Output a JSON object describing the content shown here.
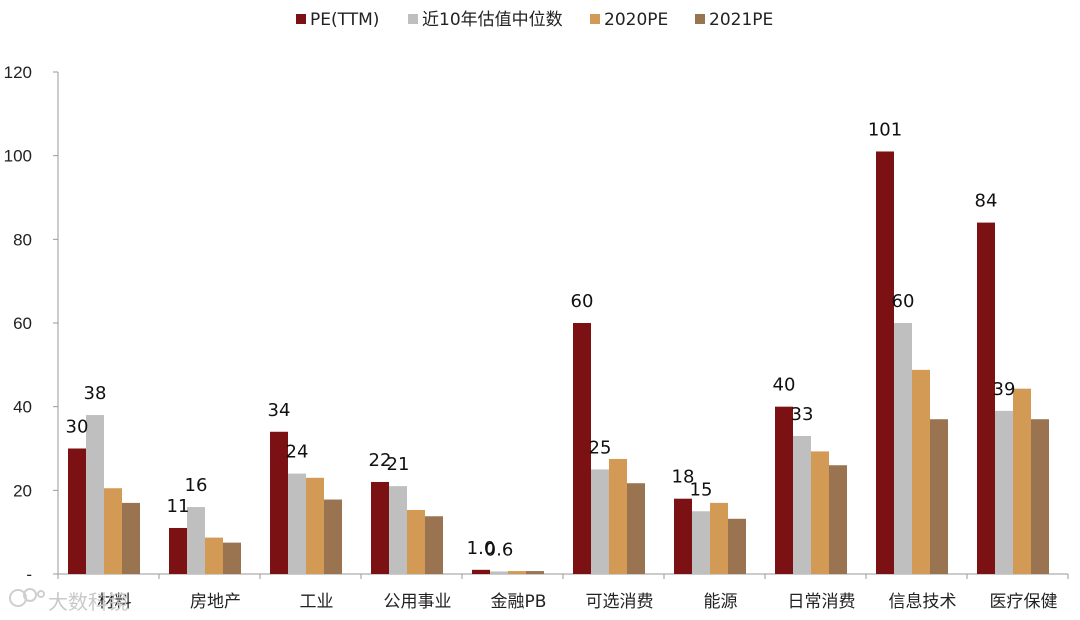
{
  "chart_data": {
    "type": "bar",
    "categories": [
      "材料",
      "房地产",
      "工业",
      "公用事业",
      "金融PB",
      "可选消费",
      "能源",
      "日常消费",
      "信息技术",
      "医疗保健"
    ],
    "series": [
      {
        "name": "PE(TTM)",
        "color": "#7B1113",
        "values": [
          30,
          11,
          34,
          22,
          1.0,
          60,
          18,
          40,
          101,
          84
        ]
      },
      {
        "name": "近10年估值中位数",
        "color": "#BFBFBF",
        "values": [
          38,
          16,
          24,
          21,
          0.6,
          25,
          15,
          33,
          60,
          39
        ]
      },
      {
        "name": "2020PE",
        "color": "#D29A55",
        "values": [
          20.5,
          8.7,
          23,
          15.3,
          0.7,
          27.5,
          17,
          29.3,
          48.8,
          44.3
        ]
      },
      {
        "name": "2021PE",
        "color": "#9A7450",
        "values": [
          17,
          7.5,
          17.8,
          13.8,
          0.7,
          21.7,
          13.2,
          26,
          37,
          37
        ]
      }
    ],
    "data_labels": {
      "PE(TTM)": [
        "30",
        "11",
        "34",
        "22",
        "1.0",
        "60",
        "18",
        "40",
        "101",
        "84"
      ],
      "近10年估值中位数": [
        "38",
        "16",
        "24",
        "21",
        "0.6",
        "25",
        "15",
        "33",
        "60",
        "39"
      ]
    },
    "y_ticks": [
      "-",
      "20",
      "40",
      "60",
      "80",
      "100",
      "120"
    ],
    "ylim": [
      0,
      120
    ],
    "legend_position": "top-center",
    "grid": false
  },
  "watermark": {
    "text": "大数科镜"
  }
}
